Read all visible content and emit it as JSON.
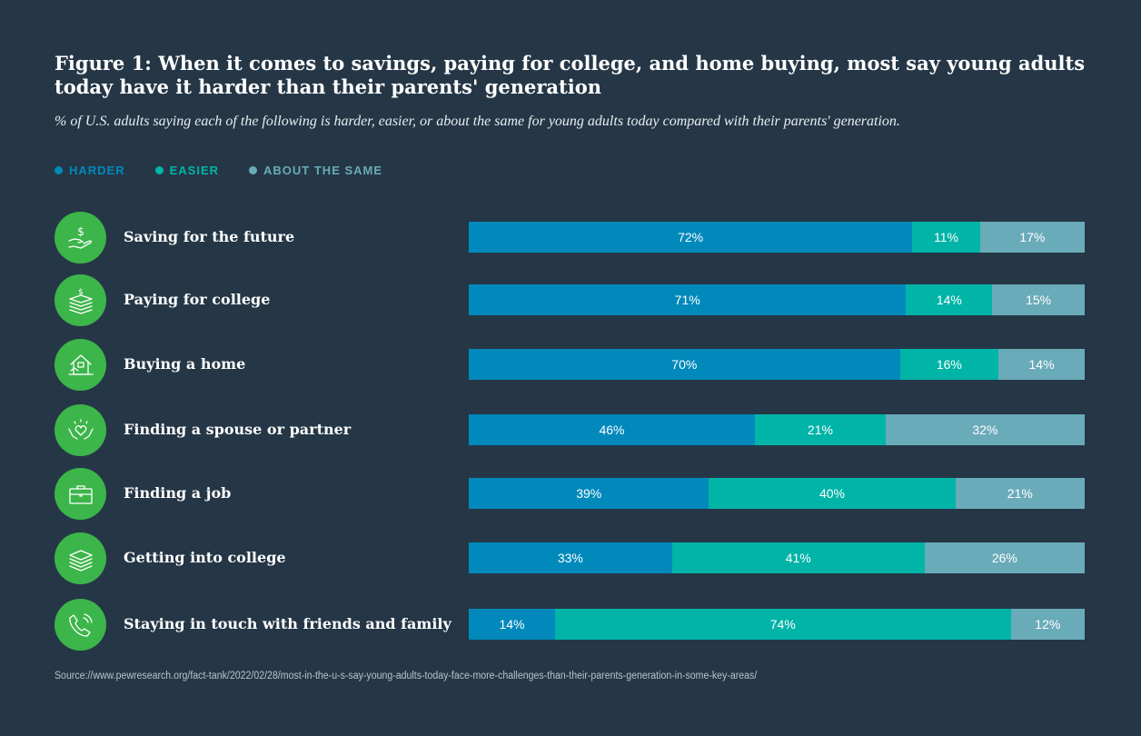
{
  "header": {
    "title": "Figure 1: When it comes to savings, paying for college, and home buying, most say young adults today have it harder than their parents' generation",
    "subtitle": "% of U.S. adults saying each of the following is harder, easier, or about the same for young adults today compared with their parents' generation."
  },
  "legend": [
    {
      "label": "HARDER",
      "color": "#0189bb"
    },
    {
      "label": "EASIER",
      "color": "#01b4a8"
    },
    {
      "label": "ABOUT THE SAME",
      "color": "#6aabb9"
    }
  ],
  "source": "Source://www.pewresearch.org/fact-tank/2022/02/28/most-in-the-u-s-say-young-adults-today-face-more-challenges-than-their-parents-generation-in-some-key-areas/",
  "chart_data": {
    "type": "bar",
    "orientation": "horizontal",
    "stacked": true,
    "title": "Figure 1: When it comes to savings, paying for college, and home buying, most say young adults today have it harder than their parents' generation",
    "xlabel": "",
    "ylabel": "",
    "xlim": [
      0,
      100
    ],
    "legend_position": "top-left",
    "categories": [
      "Saving for the future",
      "Paying for college",
      "Buying a home",
      "Finding a spouse or partner",
      "Finding a job",
      "Getting into college",
      "Staying in touch with friends and family"
    ],
    "icons": [
      "money-hand-icon",
      "money-stack-icon",
      "house-icon",
      "heart-hands-icon",
      "briefcase-icon",
      "books-icon",
      "phone-icon"
    ],
    "series": [
      {
        "name": "HARDER",
        "color": "#0189bb",
        "values": [
          72,
          71,
          70,
          46,
          39,
          33,
          14
        ]
      },
      {
        "name": "EASIER",
        "color": "#01b4a8",
        "values": [
          11,
          14,
          16,
          21,
          40,
          41,
          74
        ]
      },
      {
        "name": "ABOUT THE SAME",
        "color": "#6aabb9",
        "values": [
          17,
          15,
          14,
          32,
          21,
          26,
          12
        ]
      }
    ],
    "value_suffix": "%"
  }
}
